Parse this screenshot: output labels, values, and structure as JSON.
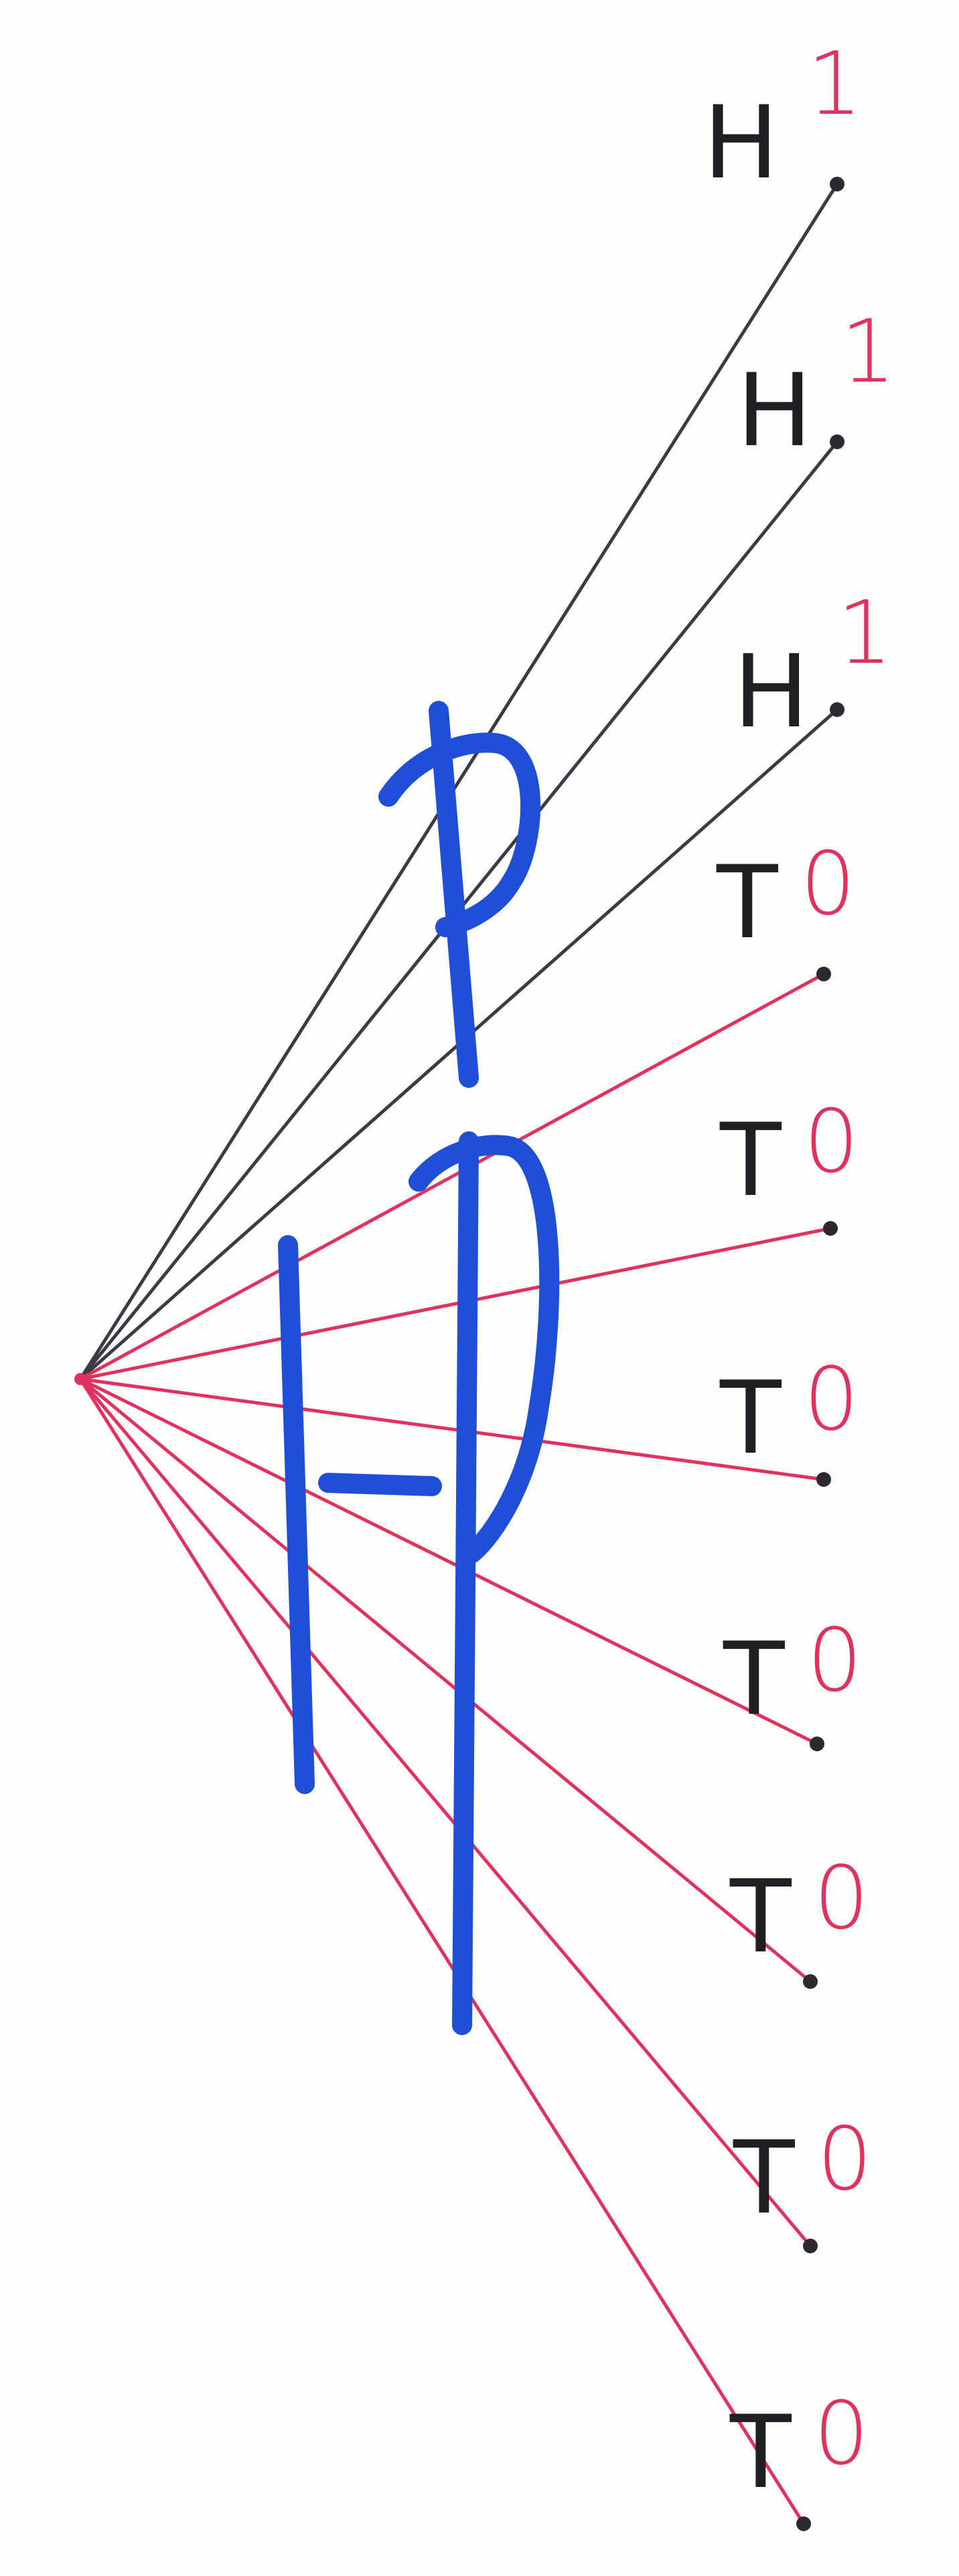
{
  "colors": {
    "background": "#fdfdfc",
    "heads_line": "#3a3b45",
    "tails_line": "#e0325f",
    "outcome_letter": "#1f1f24",
    "outcome_value": "#e0325f",
    "probability_ink": "#1e4fd6"
  },
  "tree": {
    "root_label": "",
    "branches": [
      {
        "letter": "H",
        "value": "1"
      },
      {
        "letter": "H",
        "value": "1"
      },
      {
        "letter": "H",
        "value": "1"
      },
      {
        "letter": "T",
        "value": "0"
      },
      {
        "letter": "T",
        "value": "0"
      },
      {
        "letter": "T",
        "value": "0"
      },
      {
        "letter": "T",
        "value": "0"
      },
      {
        "letter": "T",
        "value": "0"
      },
      {
        "letter": "T",
        "value": "0"
      },
      {
        "letter": "T",
        "value": "0"
      }
    ]
  },
  "probabilities": {
    "heads_annotation": "p",
    "tails_annotation": "1-p"
  }
}
